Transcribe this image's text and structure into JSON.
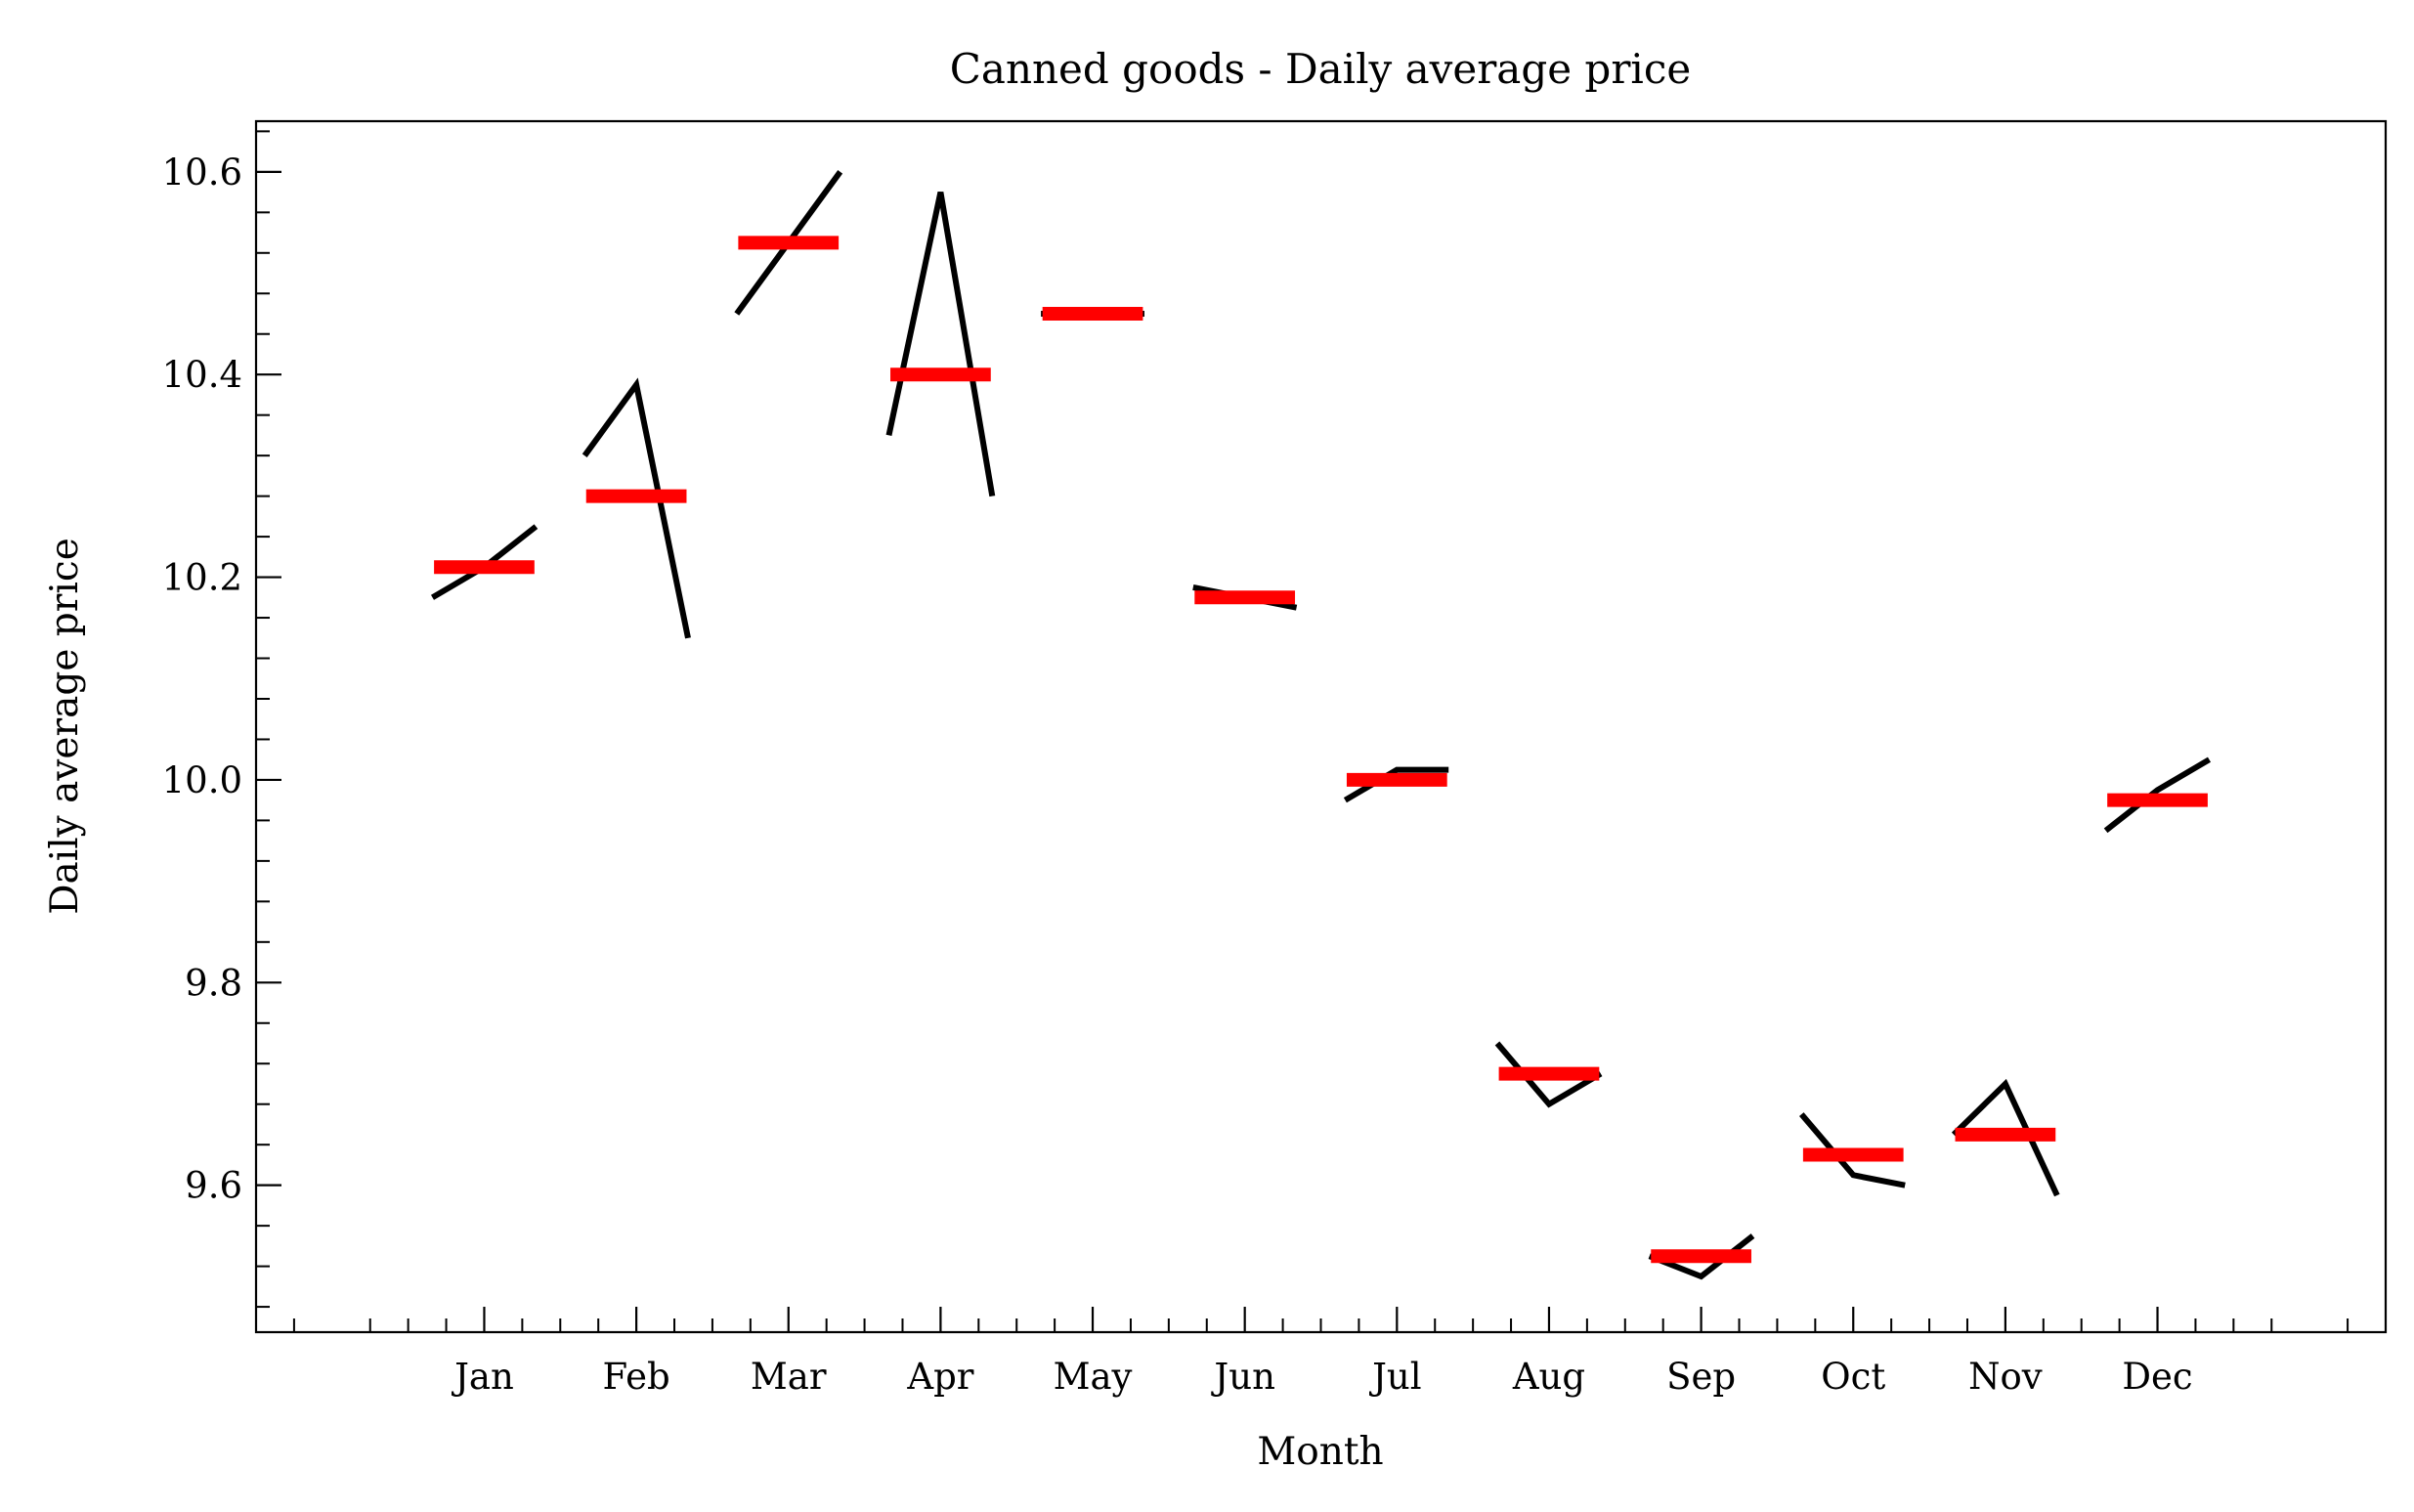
{
  "chart_data": {
    "type": "line",
    "title": "Canned goods - Daily average price",
    "xlabel": "Month",
    "ylabel": "Daily average price",
    "categories": [
      "Jan",
      "Feb",
      "Mar",
      "Apr",
      "May",
      "Jun",
      "Jul",
      "Aug",
      "Sep",
      "Oct",
      "Nov",
      "Dec"
    ],
    "xlim": [
      -1.5,
      12.5
    ],
    "ylim": [
      9.455,
      10.65
    ],
    "yticks": [
      9.6,
      9.8,
      10.0,
      10.2,
      10.4,
      10.6
    ],
    "ytick_labels": [
      "9.6",
      "9.8",
      "10.0",
      "10.2",
      "10.4",
      "10.6"
    ],
    "grid": false,
    "series": [
      {
        "role": "daily-subseries",
        "color": "#000000",
        "values": [
          [
            10.18,
            10.21,
            10.25
          ],
          [
            10.32,
            10.39,
            10.14
          ],
          [
            10.46,
            10.53,
            10.6
          ],
          [
            10.34,
            10.58,
            10.28
          ],
          [
            10.46,
            10.46,
            10.46
          ],
          [
            10.19,
            10.18,
            10.17
          ],
          [
            9.98,
            10.01,
            10.01
          ],
          [
            9.74,
            9.68,
            9.71
          ],
          [
            9.53,
            9.51,
            9.55
          ],
          [
            9.67,
            9.61,
            9.6
          ],
          [
            9.65,
            9.7,
            9.59
          ],
          [
            9.95,
            9.99,
            10.02
          ]
        ]
      },
      {
        "role": "monthly-mean",
        "color": "#ff0000",
        "values": [
          10.21,
          10.28,
          10.53,
          10.4,
          10.46,
          10.18,
          10.0,
          9.71,
          9.53,
          9.63,
          9.65,
          9.98
        ]
      }
    ]
  }
}
